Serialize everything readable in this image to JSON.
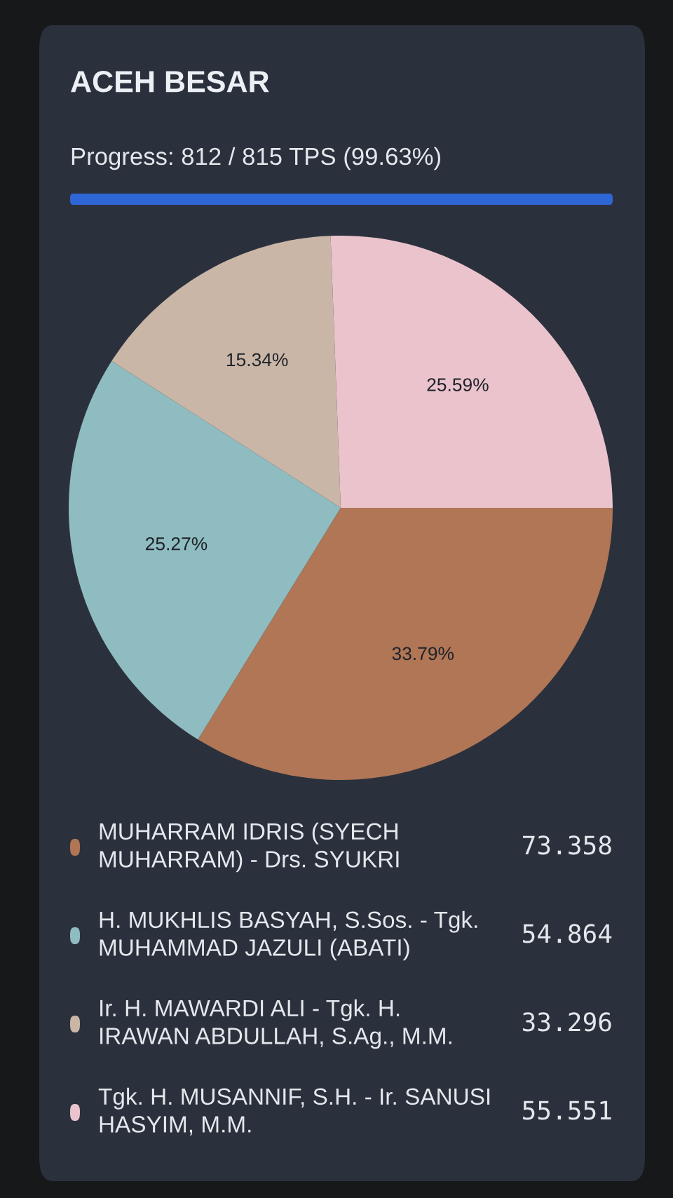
{
  "chart_data": {
    "type": "pie",
    "title": "ACEH BESAR",
    "subtitle": "Progress: 812 / 815 TPS (99.63%)",
    "categories": [
      "MUHARRAM IDRIS (SYECH MUHARRAM) - Drs. SYUKRI",
      "H. MUKHLIS BASYAH, S.Sos. - Tgk. MUHAMMAD JAZULI (ABATI)",
      "Ir. H. MAWARDI ALI - Tgk. H. IRAWAN ABDULLAH, S.Ag., M.M.",
      "Tgk. H. MUSANNIF, S.H. - Ir. SANUSI HASYIM, M.M."
    ],
    "values": [
      33.79,
      25.27,
      15.34,
      25.59
    ],
    "value_labels": [
      "33.79%",
      "25.27%",
      "15.34%",
      "25.59%"
    ],
    "colors": [
      "#b07656",
      "#8fbcc0",
      "#c9b6a7",
      "#eac3cd"
    ],
    "annotations": [
      "73.358",
      "54.864",
      "33.296",
      "55.551"
    ],
    "legend": "bottom"
  }
}
